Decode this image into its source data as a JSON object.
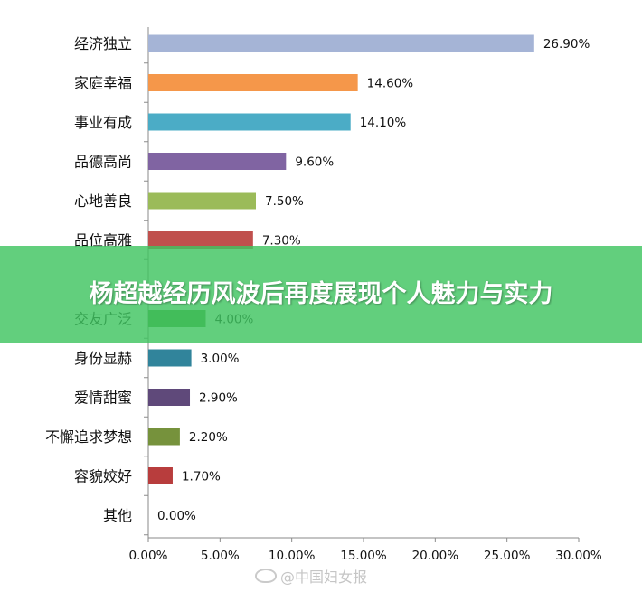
{
  "chart_data": {
    "type": "bar",
    "orientation": "horizontal",
    "categories": [
      "经济独立",
      "家庭幸福",
      "事业有成",
      "品德高尚",
      "心地善良",
      "品位高雅",
      "",
      "交友广泛",
      "身份显赫",
      "爱情甜蜜",
      "不懈追求梦想",
      "容貌姣好",
      "其他"
    ],
    "values": [
      26.9,
      14.6,
      14.1,
      9.6,
      7.5,
      7.3,
      null,
      4.0,
      3.0,
      2.9,
      2.2,
      1.7,
      0.0
    ],
    "value_labels": [
      "26.90%",
      "14.60%",
      "14.10%",
      "9.60%",
      "7.50%",
      "7.30%",
      "",
      "4.00%",
      "3.00%",
      "2.90%",
      "2.20%",
      "1.70%",
      "0.00%"
    ],
    "colors": [
      "#a5b4d6",
      "#f5974a",
      "#4bacc6",
      "#8064a2",
      "#9bbb59",
      "#c0504d",
      "#4f81bd",
      "#4e9a3c",
      "#31849b",
      "#5f497a",
      "#76923c",
      "#b83d3d",
      "#888888"
    ],
    "xlim": [
      0,
      30
    ],
    "x_ticks": [
      "0.00%",
      "5.00%",
      "10.00%",
      "15.00%",
      "20.00%",
      "25.00%",
      "30.00%"
    ],
    "grid": false
  },
  "overlay": {
    "banner_text": "杨超越经历风波后再度展现个人魅力与实力",
    "banner_color": "#40c460"
  },
  "watermark": {
    "text": "@中国妇女报"
  }
}
